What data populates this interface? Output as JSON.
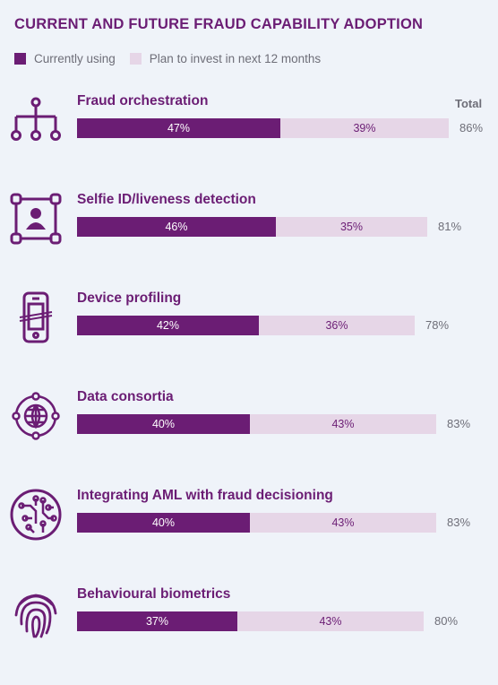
{
  "header": {
    "title": "CURRENT AND FUTURE FRAUD CAPABILITY ADOPTION",
    "total_label": "Total"
  },
  "colors": {
    "current": "#6b1d74",
    "plan": "#e6d6e7"
  },
  "chart_data": {
    "type": "bar",
    "orientation": "horizontal",
    "stacked": true,
    "title": "CURRENT AND FUTURE FRAUD CAPABILITY ADOPTION",
    "legend": [
      "Currently using",
      "Plan to invest in next 12 months"
    ],
    "legend_position": "top-left",
    "categories": [
      "Fraud orchestration",
      "Selfie ID/liveness detection",
      "Device profiling",
      "Data consortia",
      "Integrating AML with fraud decisioning",
      "Behavioural biometrics"
    ],
    "icons": [
      "hierarchy-icon",
      "face-id-icon",
      "phone-icon",
      "globe-network-icon",
      "circuit-icon",
      "fingerprint-icon"
    ],
    "series": [
      {
        "name": "Currently using",
        "values": [
          47,
          46,
          42,
          40,
          40,
          37
        ],
        "labels": [
          "47%",
          "46%",
          "42%",
          "40%",
          "40%",
          "37%"
        ]
      },
      {
        "name": "Plan to invest in next 12 months",
        "values": [
          39,
          35,
          36,
          43,
          43,
          43
        ],
        "labels": [
          "39%",
          "35%",
          "36%",
          "43%",
          "43%",
          "43%"
        ]
      }
    ],
    "totals": [
      "86%",
      "81%",
      "78%",
      "83%",
      "83%",
      "80%"
    ]
  }
}
